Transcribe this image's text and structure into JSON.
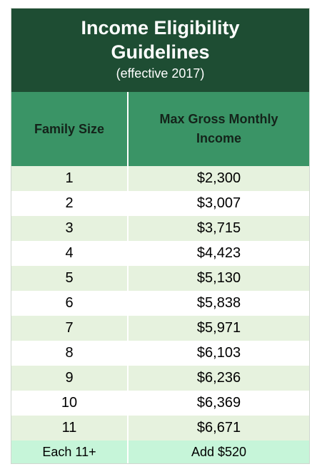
{
  "title": {
    "line1": "Income Eligibility",
    "line2": "Guidelines",
    "subtitle": "(effective 2017)"
  },
  "table": {
    "headers": {
      "family_size": "Family Size",
      "max_income_line1": "Max Gross Monthly",
      "max_income_line2": "Income"
    },
    "rows": [
      {
        "size": "1",
        "income": "$2,300"
      },
      {
        "size": "2",
        "income": "$3,007"
      },
      {
        "size": "3",
        "income": "$3,715"
      },
      {
        "size": "4",
        "income": "$4,423"
      },
      {
        "size": "5",
        "income": "$5,130"
      },
      {
        "size": "6",
        "income": "$5,838"
      },
      {
        "size": "7",
        "income": "$5,971"
      },
      {
        "size": "8",
        "income": "$6,103"
      },
      {
        "size": "9",
        "income": "$6,236"
      },
      {
        "size": "10",
        "income": "$6,369"
      },
      {
        "size": "11",
        "income": "$6,671"
      }
    ],
    "footer": {
      "size": "Each 11+",
      "income": "Add $520"
    }
  },
  "colors": {
    "title_bg": "#1e4d33",
    "header_bg": "#3a9466",
    "row_light": "#e6f2de",
    "row_white": "#ffffff",
    "footer_bg": "#c6f5d9"
  }
}
